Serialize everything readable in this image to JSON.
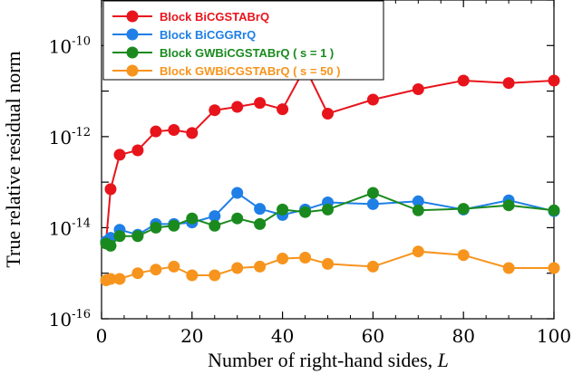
{
  "chart_data": {
    "type": "line",
    "title": "",
    "xlabel": "Number of right-hand sides, ",
    "xlabel_var": "L",
    "ylabel": "True relative residual norm",
    "xlim": [
      0,
      100
    ],
    "ylim_log10": [
      -16,
      -9
    ],
    "y_scale": "log",
    "grid": false,
    "legend_position": "top-left",
    "x_ticks": [
      0,
      20,
      40,
      60,
      80,
      100
    ],
    "x_tick_labels": [
      "0",
      "20",
      "40",
      "60",
      "80",
      "100"
    ],
    "y_ticks": [
      {
        "base": "10",
        "exp": "-16",
        "log": -16
      },
      {
        "base": "10",
        "exp": "-14",
        "log": -14
      },
      {
        "base": "10",
        "exp": "-12",
        "log": -12
      },
      {
        "base": "10",
        "exp": "-10",
        "log": -10
      }
    ],
    "series": [
      {
        "name": "Block BiCGSTABrQ",
        "color": "#e8141c",
        "x": [
          1,
          2,
          4,
          8,
          12,
          16,
          20,
          25,
          30,
          35,
          40,
          45,
          50,
          60,
          70,
          80,
          90,
          100
        ],
        "y": [
          5e-15,
          7e-14,
          4e-13,
          5e-13,
          1.3e-12,
          1.4e-12,
          1.2e-12,
          3.8e-12,
          4.5e-12,
          5.5e-12,
          4e-12,
          3.3e-11,
          3.2e-12,
          6.5e-12,
          1.1e-11,
          1.7e-11,
          1.5e-11,
          1.7e-11
        ]
      },
      {
        "name": "Block BiCGGRrQ",
        "color": "#1f7fe6",
        "x": [
          1,
          2,
          4,
          8,
          12,
          16,
          20,
          25,
          30,
          35,
          40,
          45,
          50,
          60,
          70,
          80,
          90,
          100
        ],
        "y": [
          5e-15,
          6e-15,
          9e-15,
          7e-15,
          1.2e-14,
          1.2e-14,
          1.3e-14,
          1.8e-14,
          5.8e-14,
          2.6e-14,
          1.9e-14,
          2.5e-14,
          3.6e-14,
          3.3e-14,
          3.8e-14,
          2.5e-14,
          4e-14,
          2.3e-14
        ]
      },
      {
        "name": "Block GWBiCGSTABrQ ( s = 1 )",
        "color": "#1a8a1e",
        "x": [
          1,
          2,
          4,
          8,
          12,
          16,
          20,
          25,
          30,
          35,
          40,
          45,
          50,
          60,
          70,
          80,
          90,
          100
        ],
        "y": [
          4.5e-15,
          4e-15,
          6.5e-15,
          6.5e-15,
          1e-14,
          1.1e-14,
          1.6e-14,
          1.1e-14,
          1.6e-14,
          1.2e-14,
          2.5e-14,
          2.2e-14,
          2.5e-14,
          5.8e-14,
          2.4e-14,
          2.6e-14,
          3.1e-14,
          2.4e-14
        ]
      },
      {
        "name": "Block GWBiCGSTABrQ ( s = 50 )",
        "color": "#f7941d",
        "x": [
          1,
          2,
          4,
          8,
          12,
          16,
          20,
          25,
          30,
          35,
          40,
          45,
          50,
          60,
          70,
          80,
          90,
          100
        ],
        "y": [
          7e-16,
          7.5e-16,
          7.5e-16,
          1e-15,
          1.2e-15,
          1.4e-15,
          9e-16,
          9e-16,
          1.3e-15,
          1.4e-15,
          2.1e-15,
          2.2e-15,
          1.6e-15,
          1.4e-15,
          3e-15,
          2.5e-15,
          1.3e-15,
          1.3e-15
        ]
      }
    ]
  }
}
